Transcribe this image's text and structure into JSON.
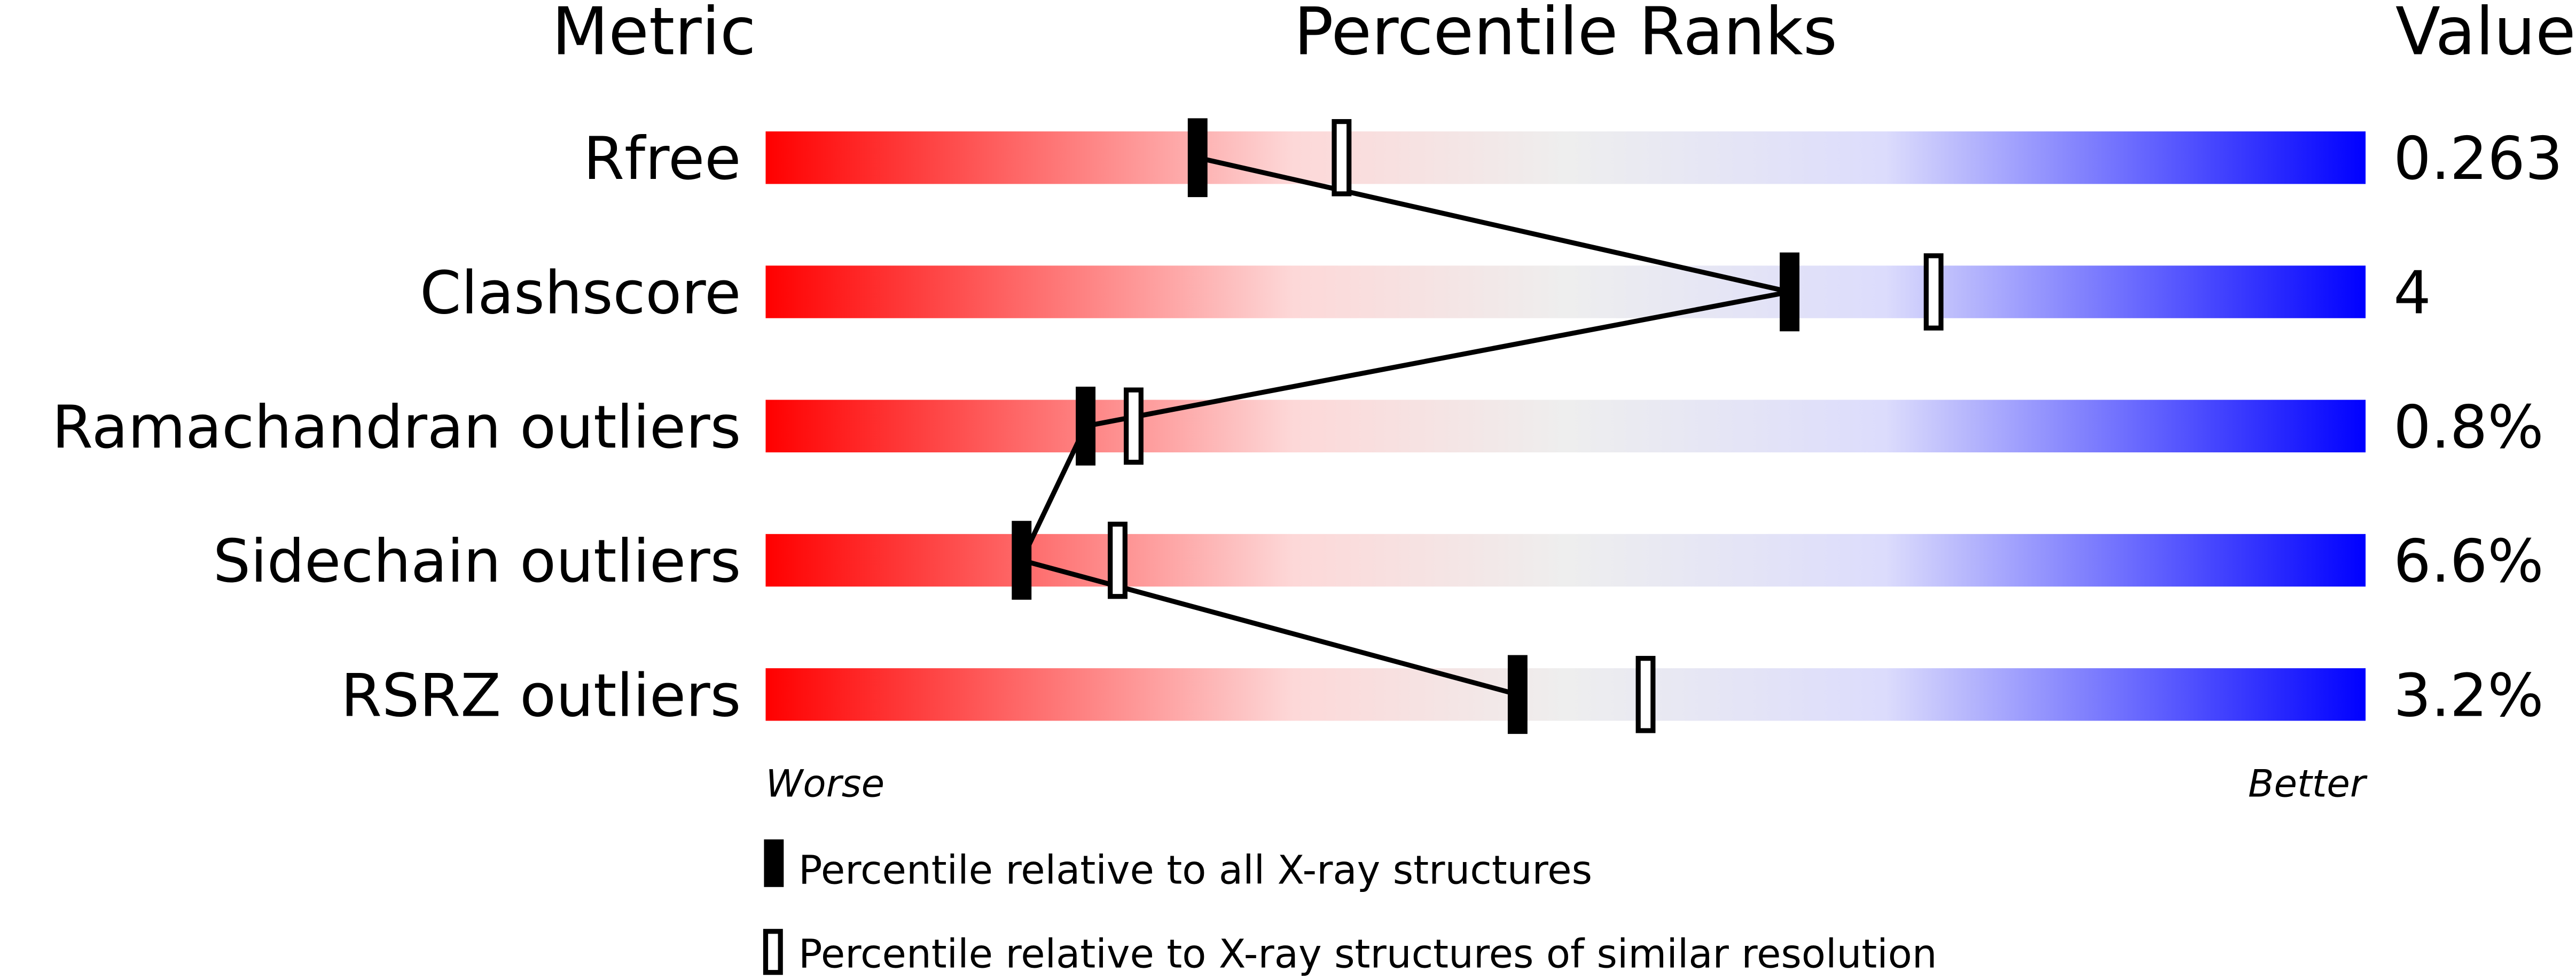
{
  "chart_data": {
    "type": "percentile-ranks",
    "headers": {
      "metric": "Metric",
      "title": "Percentile Ranks",
      "value": "Value"
    },
    "xlim": [
      0,
      100
    ],
    "scale_labels": {
      "low": "Worse",
      "high": "Better"
    },
    "gradient_colors": [
      "#ff0000",
      "#fddddd",
      "#eeeeee",
      "#ddddff",
      "#0000ff"
    ],
    "rows": [
      {
        "metric": "Rfree",
        "value": "0.263",
        "percentile_all": 27,
        "percentile_similar": 36
      },
      {
        "metric": "Clashscore",
        "value": "4",
        "percentile_all": 64,
        "percentile_similar": 73
      },
      {
        "metric": "Ramachandran outliers",
        "value": "0.8%",
        "percentile_all": 20,
        "percentile_similar": 23
      },
      {
        "metric": "Sidechain outliers",
        "value": "6.6%",
        "percentile_all": 16,
        "percentile_similar": 22
      },
      {
        "metric": "RSRZ outliers",
        "value": "3.2%",
        "percentile_all": 47,
        "percentile_similar": 55
      }
    ],
    "legend": [
      {
        "marker": "filled",
        "label": "Percentile relative to all X-ray structures"
      },
      {
        "marker": "open",
        "label": "Percentile relative to X-ray structures of similar resolution"
      }
    ]
  }
}
